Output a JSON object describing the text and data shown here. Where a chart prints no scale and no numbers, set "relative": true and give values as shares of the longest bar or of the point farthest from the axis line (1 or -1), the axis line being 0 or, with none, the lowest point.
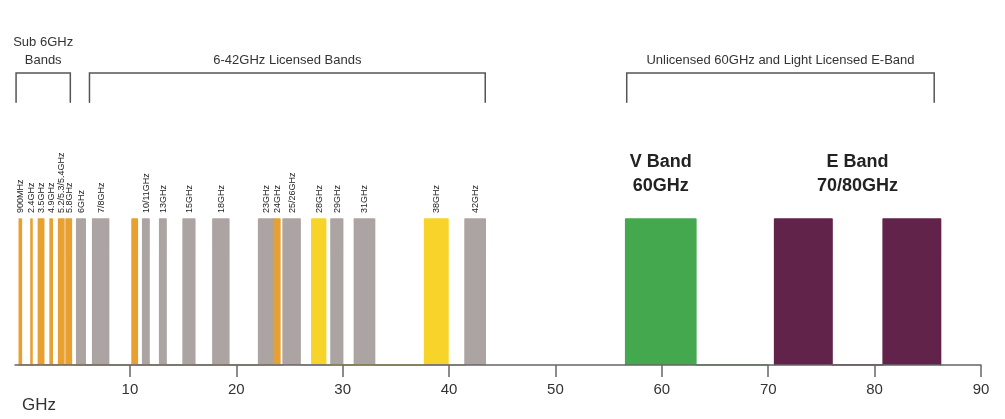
{
  "chart_data": {
    "type": "area",
    "relative": true,
    "xlabel": "GHz",
    "xlim": [
      -0.8,
      90
    ],
    "xticks": [
      10,
      20,
      30,
      40,
      50,
      60,
      70,
      80,
      90
    ],
    "series": [
      {
        "color": "#e8a030",
        "x": [
          -0.4,
          -0.4,
          -0.2,
          -0.2,
          0.7,
          0.7,
          0.8,
          0.8,
          1.4,
          1.4,
          1.9,
          1.9,
          2.5,
          2.5,
          2.7,
          2.7,
          3.3,
          3.3,
          3.8,
          3.8,
          4.0,
          4.0,
          4.5,
          4.5,
          10.2,
          10.2,
          10.7,
          10.7,
          23.5,
          23.5,
          24.1,
          24.1
        ],
        "values": [
          0,
          0.5,
          0.5,
          0,
          0,
          0.5,
          0.5,
          0,
          0,
          0.5,
          0.5,
          0,
          0,
          0.5,
          0.5,
          0,
          0,
          0.5,
          0.5,
          0,
          0,
          0.5,
          0.5,
          0,
          0,
          0.5,
          0.5,
          0,
          0,
          0.5,
          0.5,
          0
        ]
      },
      {
        "color": "#aca4a2",
        "x": [
          5.0,
          5.0,
          5.8,
          5.8,
          6.5,
          6.5,
          8.0,
          8.0,
          11.2,
          11.2,
          11.8,
          11.8,
          12.8,
          12.8,
          13.4,
          13.4,
          15.0,
          15.0,
          16.1,
          16.1,
          17.8,
          17.8,
          19.3,
          19.3,
          22.1,
          22.1,
          23.5,
          23.5,
          24.4,
          24.4,
          26.0,
          26.0,
          28.9,
          28.9,
          30.0,
          30.0,
          31.1,
          31.1,
          33.0,
          33.0,
          41.5,
          41.5,
          43.4,
          43.4
        ],
        "values": [
          0,
          0.5,
          0.5,
          0,
          0,
          0.5,
          0.5,
          0,
          0,
          0.5,
          0.5,
          0,
          0,
          0.5,
          0.5,
          0,
          0,
          0.5,
          0.5,
          0,
          0,
          0.5,
          0.5,
          0,
          0,
          0.5,
          0.5,
          0,
          0,
          0.5,
          0.5,
          0,
          0,
          0.5,
          0.5,
          0,
          0,
          0.5,
          0.5,
          0,
          0,
          0.5,
          0.5,
          0
        ]
      },
      {
        "color": "#f8d42a",
        "x": [
          27.1,
          27.1,
          28.4,
          28.4,
          37.7,
          37.7,
          39.9,
          39.9
        ],
        "values": [
          0,
          0.5,
          0.5,
          0,
          0,
          0.5,
          0.5,
          0
        ]
      },
      {
        "name": "V Band\n60GHz",
        "color": "#44a84f",
        "x": [
          56.6,
          56.6,
          63.2,
          63.2,
          70.0
        ],
        "values": [
          0,
          0.5,
          0.5,
          0,
          0
        ]
      },
      {
        "name": "E Band\n70/80GHz",
        "color": "#62234a",
        "x": [
          70.6,
          70.6,
          76.0,
          76.0,
          80.8,
          80.8,
          86.2,
          86.2
        ],
        "values": [
          0,
          0.5,
          0.5,
          0,
          0,
          0.5,
          0.5,
          0
        ]
      },
      {
        "type": "line",
        "name": "Sub 6GHz\nBands",
        "color": "#555555",
        "x": [
          -0.7,
          -0.7,
          4.4,
          4.4
        ],
        "values": [
          0.9,
          1,
          1,
          0.9
        ]
      },
      {
        "type": "line",
        "name": "6-42GHz Licensed Bands",
        "color": "#555555",
        "x": [
          6.2,
          6.2,
          43.4,
          43.4
        ],
        "values": [
          0.9,
          1,
          1,
          0.9
        ]
      },
      {
        "type": "line",
        "name": "Unlicensed 60GHz and Light Licensed E-Band",
        "color": "#555555",
        "x": [
          56.7,
          56.7,
          85.6,
          85.6
        ],
        "values": [
          0.9,
          1,
          1,
          0.9
        ]
      }
    ],
    "annotations": [
      {
        "text": "900MHz",
        "x": -0.3,
        "y": 0.5
      },
      {
        "text": "2.4GHz",
        "x": 0.75,
        "y": 0.5
      },
      {
        "text": "3.5GHz",
        "x": 1.65,
        "y": 0.5
      },
      {
        "text": "4.9GHz",
        "x": 2.6,
        "y": 0.5
      },
      {
        "text": "5.2/5.3/5.4GHz",
        "x": 3.55,
        "y": 0.5
      },
      {
        "text": "5.8GHz",
        "x": 4.25,
        "y": 0.5
      },
      {
        "text": "6GHz",
        "x": 5.4,
        "y": 0.5
      },
      {
        "text": "7/8GHz",
        "x": 7.25,
        "y": 0.5
      },
      {
        "text": "10/11GHz",
        "x": 11.5,
        "y": 0.5
      },
      {
        "text": "13GHz",
        "x": 13.1,
        "y": 0.5
      },
      {
        "text": "15GHz",
        "x": 15.55,
        "y": 0.5
      },
      {
        "text": "18GHz",
        "x": 18.55,
        "y": 0.5
      },
      {
        "text": "23GHz",
        "x": 22.8,
        "y": 0.5
      },
      {
        "text": "24GHz",
        "x": 23.8,
        "y": 0.5
      },
      {
        "text": "25/26GHz",
        "x": 25.2,
        "y": 0.5
      },
      {
        "text": "28GHz",
        "x": 27.75,
        "y": 0.5
      },
      {
        "text": "29GHz",
        "x": 29.45,
        "y": 0.5
      },
      {
        "text": "31GHz",
        "x": 32.05,
        "y": 0.5
      },
      {
        "text": "38GHz",
        "x": 38.8,
        "y": 0.5
      },
      {
        "text": "42GHz",
        "x": 42.45,
        "y": 0.5
      }
    ]
  }
}
